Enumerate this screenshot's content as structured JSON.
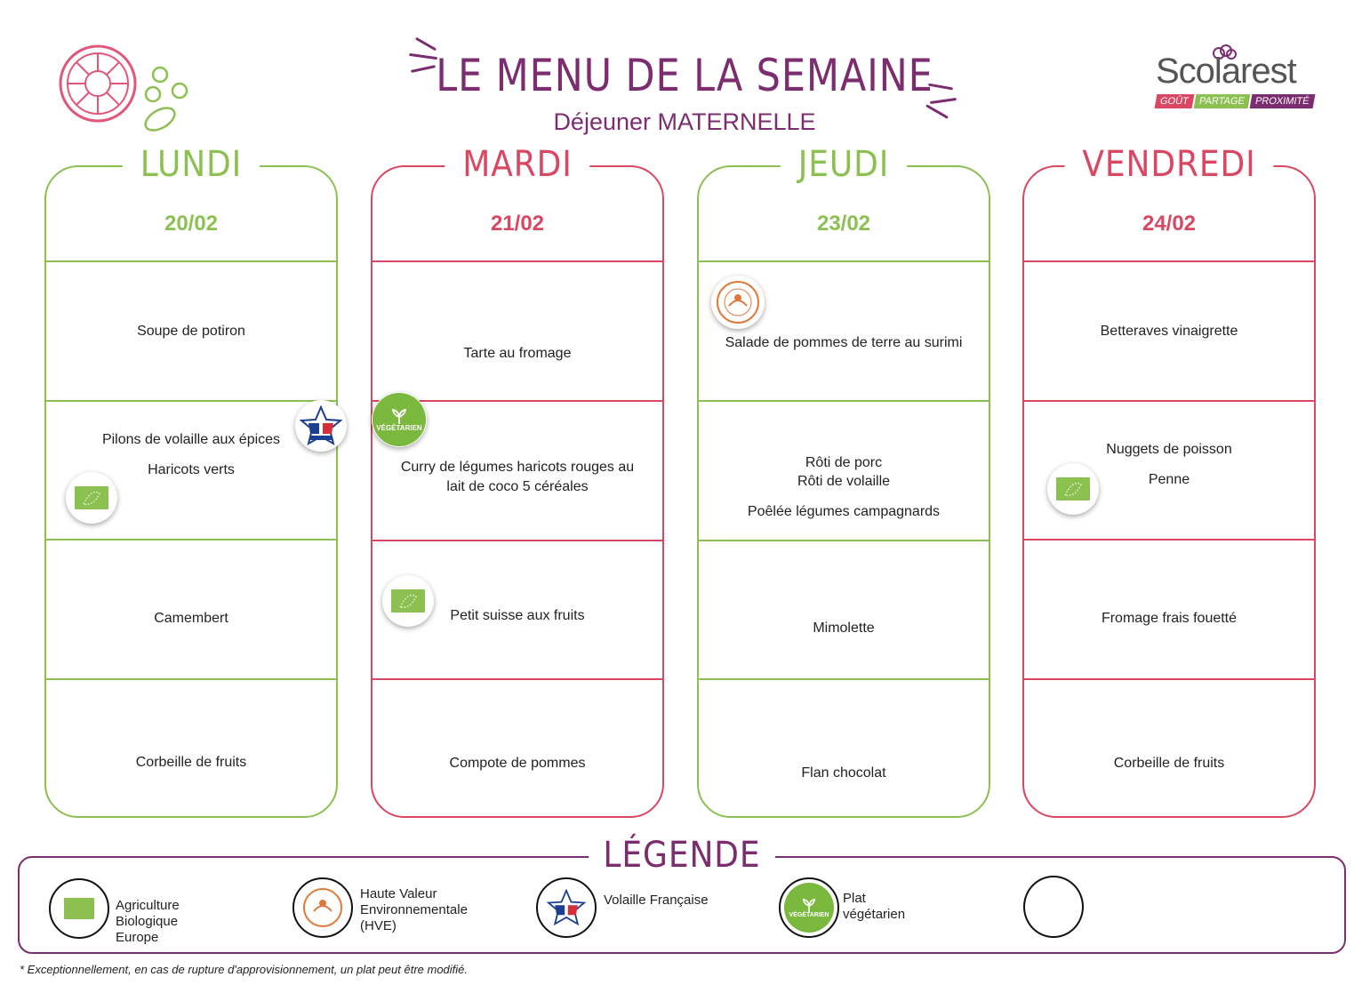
{
  "header": {
    "title": "LE MENU DE LA SEMAINE",
    "subtitle": "Déjeuner MATERNELLE"
  },
  "brand": {
    "name": "Scolarest",
    "tagline": [
      "GOÛT",
      "PARTAGE",
      "PROXIMITÉ"
    ],
    "tag_colors": [
      "#d94763",
      "#8cc152",
      "#7b2d6f"
    ]
  },
  "colors": {
    "green": "#8cc152",
    "red": "#d94763",
    "purple": "#7b2d6f",
    "hve_orange": "#e07a3a"
  },
  "days": [
    {
      "name": "LUNDI",
      "date": "20/02",
      "starter": [
        "Soupe de potiron"
      ],
      "main": [
        "Pilons de volaille aux épices",
        "Haricots verts"
      ],
      "cheese": [
        "Camembert"
      ],
      "dessert": [
        "Corbeille de fruits"
      ]
    },
    {
      "name": "MARDI",
      "date": "21/02",
      "starter": [
        "Tarte au fromage"
      ],
      "main": [
        "Curry de légumes haricots rouges au",
        "lait de coco 5 céréales"
      ],
      "cheese": [
        "Petit suisse aux fruits"
      ],
      "dessert": [
        "Compote de pommes"
      ]
    },
    {
      "name": "JEUDI",
      "date": "23/02",
      "starter": [
        "Salade de pommes de terre au surimi"
      ],
      "main": [
        "Rôti de porc",
        "Rôti de volaille",
        "Poêlée légumes campagnards"
      ],
      "cheese": [
        "Mimolette"
      ],
      "dessert": [
        "Flan chocolat"
      ]
    },
    {
      "name": "VENDREDI",
      "date": "24/02",
      "starter": [
        "Betteraves vinaigrette"
      ],
      "main": [
        "Nuggets de poisson",
        "Penne"
      ],
      "cheese": [
        "Fromage frais fouetté"
      ],
      "dessert": [
        "Corbeille de fruits"
      ]
    }
  ],
  "badges": {
    "vegetarian": "VÉGÉTARIEN",
    "volaille_logo": "VOLAILLE FRANÇAISE"
  },
  "icons": [
    "eu-organic-icon",
    "hve-icon",
    "volaille-francaise-icon",
    "vegetarian-icon",
    "tomato-icon",
    "peas-icon"
  ],
  "legend": {
    "title": "LÉGENDE",
    "items": [
      {
        "label": "Agriculture Biologique Europe"
      },
      {
        "label": "Haute Valeur Environnementale (HVE)"
      },
      {
        "label": "Volaille Française"
      },
      {
        "label": "Plat végétarien"
      },
      {
        "label": ""
      }
    ]
  },
  "footnote": "* Exceptionnellement, en cas de rupture d'approvisionnement, un plat peut être modifié."
}
